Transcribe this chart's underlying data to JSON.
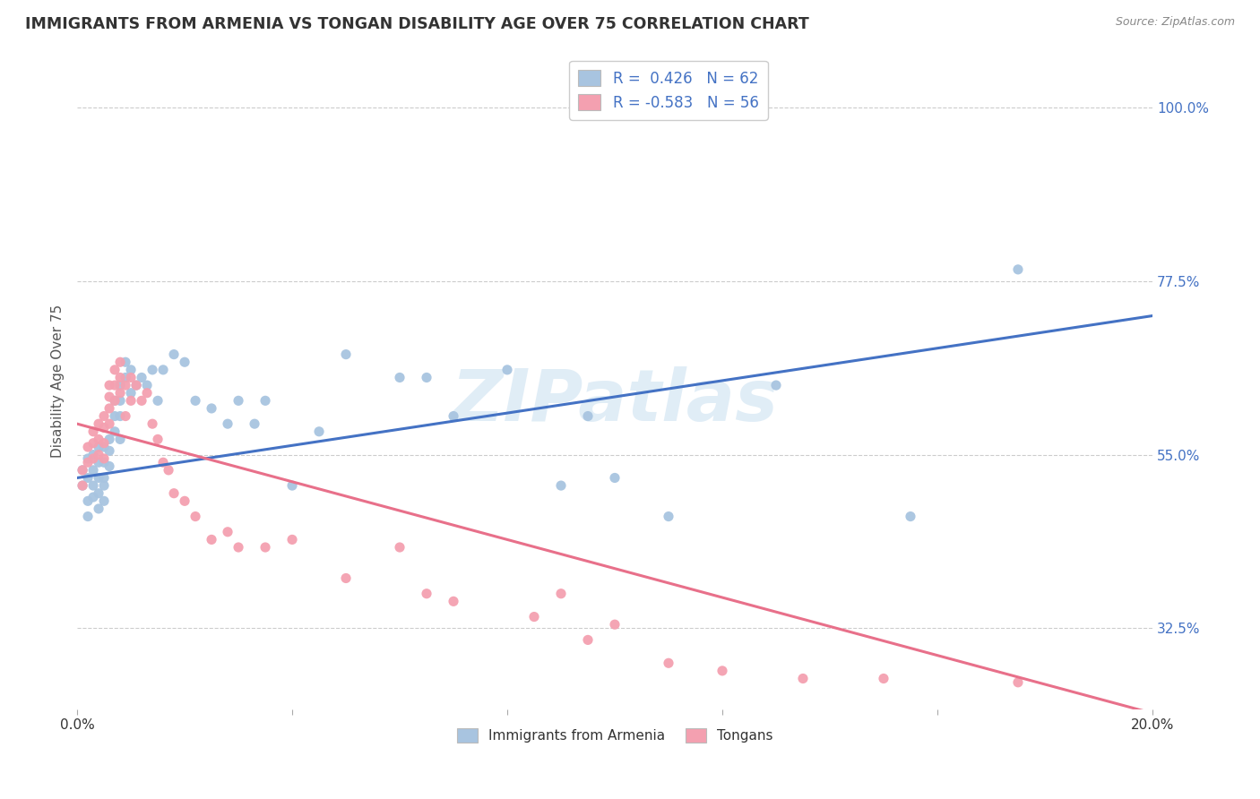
{
  "title": "IMMIGRANTS FROM ARMENIA VS TONGAN DISABILITY AGE OVER 75 CORRELATION CHART",
  "source": "Source: ZipAtlas.com",
  "ylabel": "Disability Age Over 75",
  "yticks": [
    "32.5%",
    "55.0%",
    "77.5%",
    "100.0%"
  ],
  "ytick_vals": [
    0.325,
    0.55,
    0.775,
    1.0
  ],
  "xmin": 0.0,
  "xmax": 0.2,
  "ymin": 0.22,
  "ymax": 1.07,
  "legend_r1": "R =  0.426   N = 62",
  "legend_r2": "R = -0.583   N = 56",
  "color_armenia": "#a8c4e0",
  "color_tongan": "#f4a0b0",
  "color_line_armenia": "#4472c4",
  "color_line_tongan": "#e8708a",
  "watermark": "ZIPatlas",
  "armenia_scatter_x": [
    0.001,
    0.001,
    0.002,
    0.002,
    0.002,
    0.002,
    0.003,
    0.003,
    0.003,
    0.003,
    0.004,
    0.004,
    0.004,
    0.004,
    0.004,
    0.005,
    0.005,
    0.005,
    0.005,
    0.005,
    0.006,
    0.006,
    0.006,
    0.007,
    0.007,
    0.007,
    0.008,
    0.008,
    0.008,
    0.008,
    0.009,
    0.009,
    0.01,
    0.01,
    0.011,
    0.012,
    0.013,
    0.014,
    0.015,
    0.016,
    0.018,
    0.02,
    0.022,
    0.025,
    0.028,
    0.03,
    0.033,
    0.035,
    0.04,
    0.045,
    0.05,
    0.06,
    0.065,
    0.07,
    0.08,
    0.09,
    0.095,
    0.1,
    0.11,
    0.13,
    0.155,
    0.175
  ],
  "armenia_scatter_y": [
    0.53,
    0.51,
    0.49,
    0.52,
    0.545,
    0.47,
    0.51,
    0.55,
    0.53,
    0.495,
    0.56,
    0.54,
    0.52,
    0.5,
    0.48,
    0.56,
    0.54,
    0.52,
    0.51,
    0.49,
    0.57,
    0.555,
    0.535,
    0.62,
    0.6,
    0.58,
    0.64,
    0.62,
    0.6,
    0.57,
    0.67,
    0.65,
    0.66,
    0.63,
    0.64,
    0.65,
    0.64,
    0.66,
    0.62,
    0.66,
    0.68,
    0.67,
    0.62,
    0.61,
    0.59,
    0.62,
    0.59,
    0.62,
    0.51,
    0.58,
    0.68,
    0.65,
    0.65,
    0.6,
    0.66,
    0.51,
    0.6,
    0.52,
    0.47,
    0.64,
    0.47,
    0.79
  ],
  "tongan_scatter_x": [
    0.001,
    0.001,
    0.002,
    0.002,
    0.003,
    0.003,
    0.003,
    0.004,
    0.004,
    0.004,
    0.005,
    0.005,
    0.005,
    0.005,
    0.006,
    0.006,
    0.006,
    0.006,
    0.007,
    0.007,
    0.007,
    0.008,
    0.008,
    0.008,
    0.009,
    0.009,
    0.01,
    0.01,
    0.011,
    0.012,
    0.013,
    0.014,
    0.015,
    0.016,
    0.017,
    0.018,
    0.02,
    0.022,
    0.025,
    0.028,
    0.03,
    0.035,
    0.04,
    0.05,
    0.06,
    0.065,
    0.07,
    0.085,
    0.09,
    0.095,
    0.1,
    0.11,
    0.12,
    0.135,
    0.15,
    0.175
  ],
  "tongan_scatter_y": [
    0.53,
    0.51,
    0.56,
    0.54,
    0.58,
    0.565,
    0.545,
    0.59,
    0.57,
    0.55,
    0.6,
    0.585,
    0.565,
    0.545,
    0.64,
    0.625,
    0.61,
    0.59,
    0.66,
    0.64,
    0.62,
    0.67,
    0.65,
    0.63,
    0.64,
    0.6,
    0.65,
    0.62,
    0.64,
    0.62,
    0.63,
    0.59,
    0.57,
    0.54,
    0.53,
    0.5,
    0.49,
    0.47,
    0.44,
    0.45,
    0.43,
    0.43,
    0.44,
    0.39,
    0.43,
    0.37,
    0.36,
    0.34,
    0.37,
    0.31,
    0.33,
    0.28,
    0.27,
    0.26,
    0.26,
    0.255
  ],
  "arm_line_x0": 0.0,
  "arm_line_x1": 0.2,
  "arm_line_y0": 0.52,
  "arm_line_y1": 0.73,
  "ton_line_x0": 0.0,
  "ton_line_x1": 0.2,
  "ton_line_y0": 0.59,
  "ton_line_y1": 0.215
}
